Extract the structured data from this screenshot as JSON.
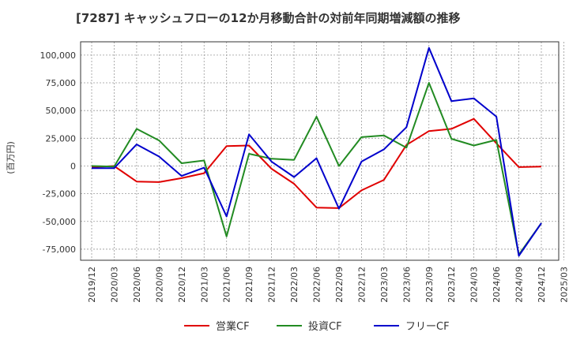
{
  "chart_data": {
    "type": "line",
    "title": "[7287]  キャッシュフローの12か月移動合計の対前年同期増減額の推移",
    "ylabel": "(百万円)",
    "xlabel": "",
    "ylim": [
      -85000,
      112000
    ],
    "yticks": [
      100000,
      75000,
      50000,
      25000,
      0,
      -25000,
      -50000,
      -75000
    ],
    "ytick_labels": [
      "100,000",
      "75,000",
      "50,000",
      "25,000",
      "0",
      "-25,000",
      "-50,000",
      "-75,000"
    ],
    "x": [
      "2019/12",
      "2020/03",
      "2020/06",
      "2020/09",
      "2020/12",
      "2021/03",
      "2021/06",
      "2021/09",
      "2021/12",
      "2022/03",
      "2022/06",
      "2022/09",
      "2022/12",
      "2023/03",
      "2023/06",
      "2023/09",
      "2023/12",
      "2024/03",
      "2024/06",
      "2024/09",
      "2024/12",
      "2025/03"
    ],
    "grid": true,
    "legend_position": "bottom",
    "series": [
      {
        "name": "営業CF",
        "color": "#e00000",
        "values": [
          -1000,
          0,
          -14000,
          -14500,
          -11000,
          -6500,
          18000,
          18500,
          -2500,
          -16000,
          -37500,
          -38000,
          -22000,
          -12500,
          19000,
          31500,
          33500,
          42500,
          20500,
          -1000,
          -500,
          null
        ]
      },
      {
        "name": "投資CF",
        "color": "#228b22",
        "values": [
          0,
          -500,
          33500,
          23000,
          2500,
          5000,
          -63500,
          11000,
          6500,
          5500,
          44500,
          0,
          26000,
          27500,
          16500,
          75000,
          24500,
          18500,
          23500,
          -80000,
          -51500,
          null
        ]
      },
      {
        "name": "フリーCF",
        "color": "#0000cc",
        "values": [
          -2000,
          -2000,
          19500,
          8500,
          -9000,
          -1500,
          -45500,
          28500,
          4000,
          -10000,
          7000,
          -38500,
          4000,
          15000,
          35000,
          106500,
          58500,
          61000,
          44500,
          -81000,
          -51500,
          null
        ]
      }
    ]
  }
}
